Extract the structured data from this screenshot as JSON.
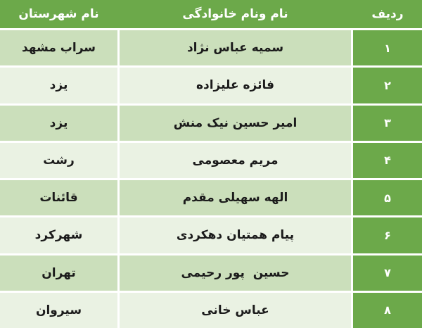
{
  "table": {
    "headers": {
      "row_no": "رديف",
      "full_name": "نام ونام خانوادگی",
      "city": "نام شهرستان"
    },
    "rows": [
      {
        "no": "۱",
        "name": "سمیه عباس نژاد",
        "city": "سراب مشهد"
      },
      {
        "no": "۲",
        "name": "فائزه علیزاده",
        "city": "یزد"
      },
      {
        "no": "۳",
        "name": "امیر حسین نیک منش",
        "city": "یزد"
      },
      {
        "no": "۴",
        "name": "مریم معصومی",
        "city": "رشت"
      },
      {
        "no": "۵",
        "name": "الهه سهیلی مقدم",
        "city": "قائنات"
      },
      {
        "no": "۶",
        "name": "پیام همتیان دهکردی",
        "city": "شهرکرد"
      },
      {
        "no": "۷",
        "name": "حسین  پور رحیمی",
        "city": "تهران"
      },
      {
        "no": "۸",
        "name": "عباس خانی",
        "city": "سیروان"
      }
    ]
  },
  "colors": {
    "green": "#6CA94A",
    "band_dark": "#CBDFBB",
    "band_light": "#EAF2E3",
    "header_text": "#FFFFFF",
    "cell_text": "#1B1B1B"
  }
}
